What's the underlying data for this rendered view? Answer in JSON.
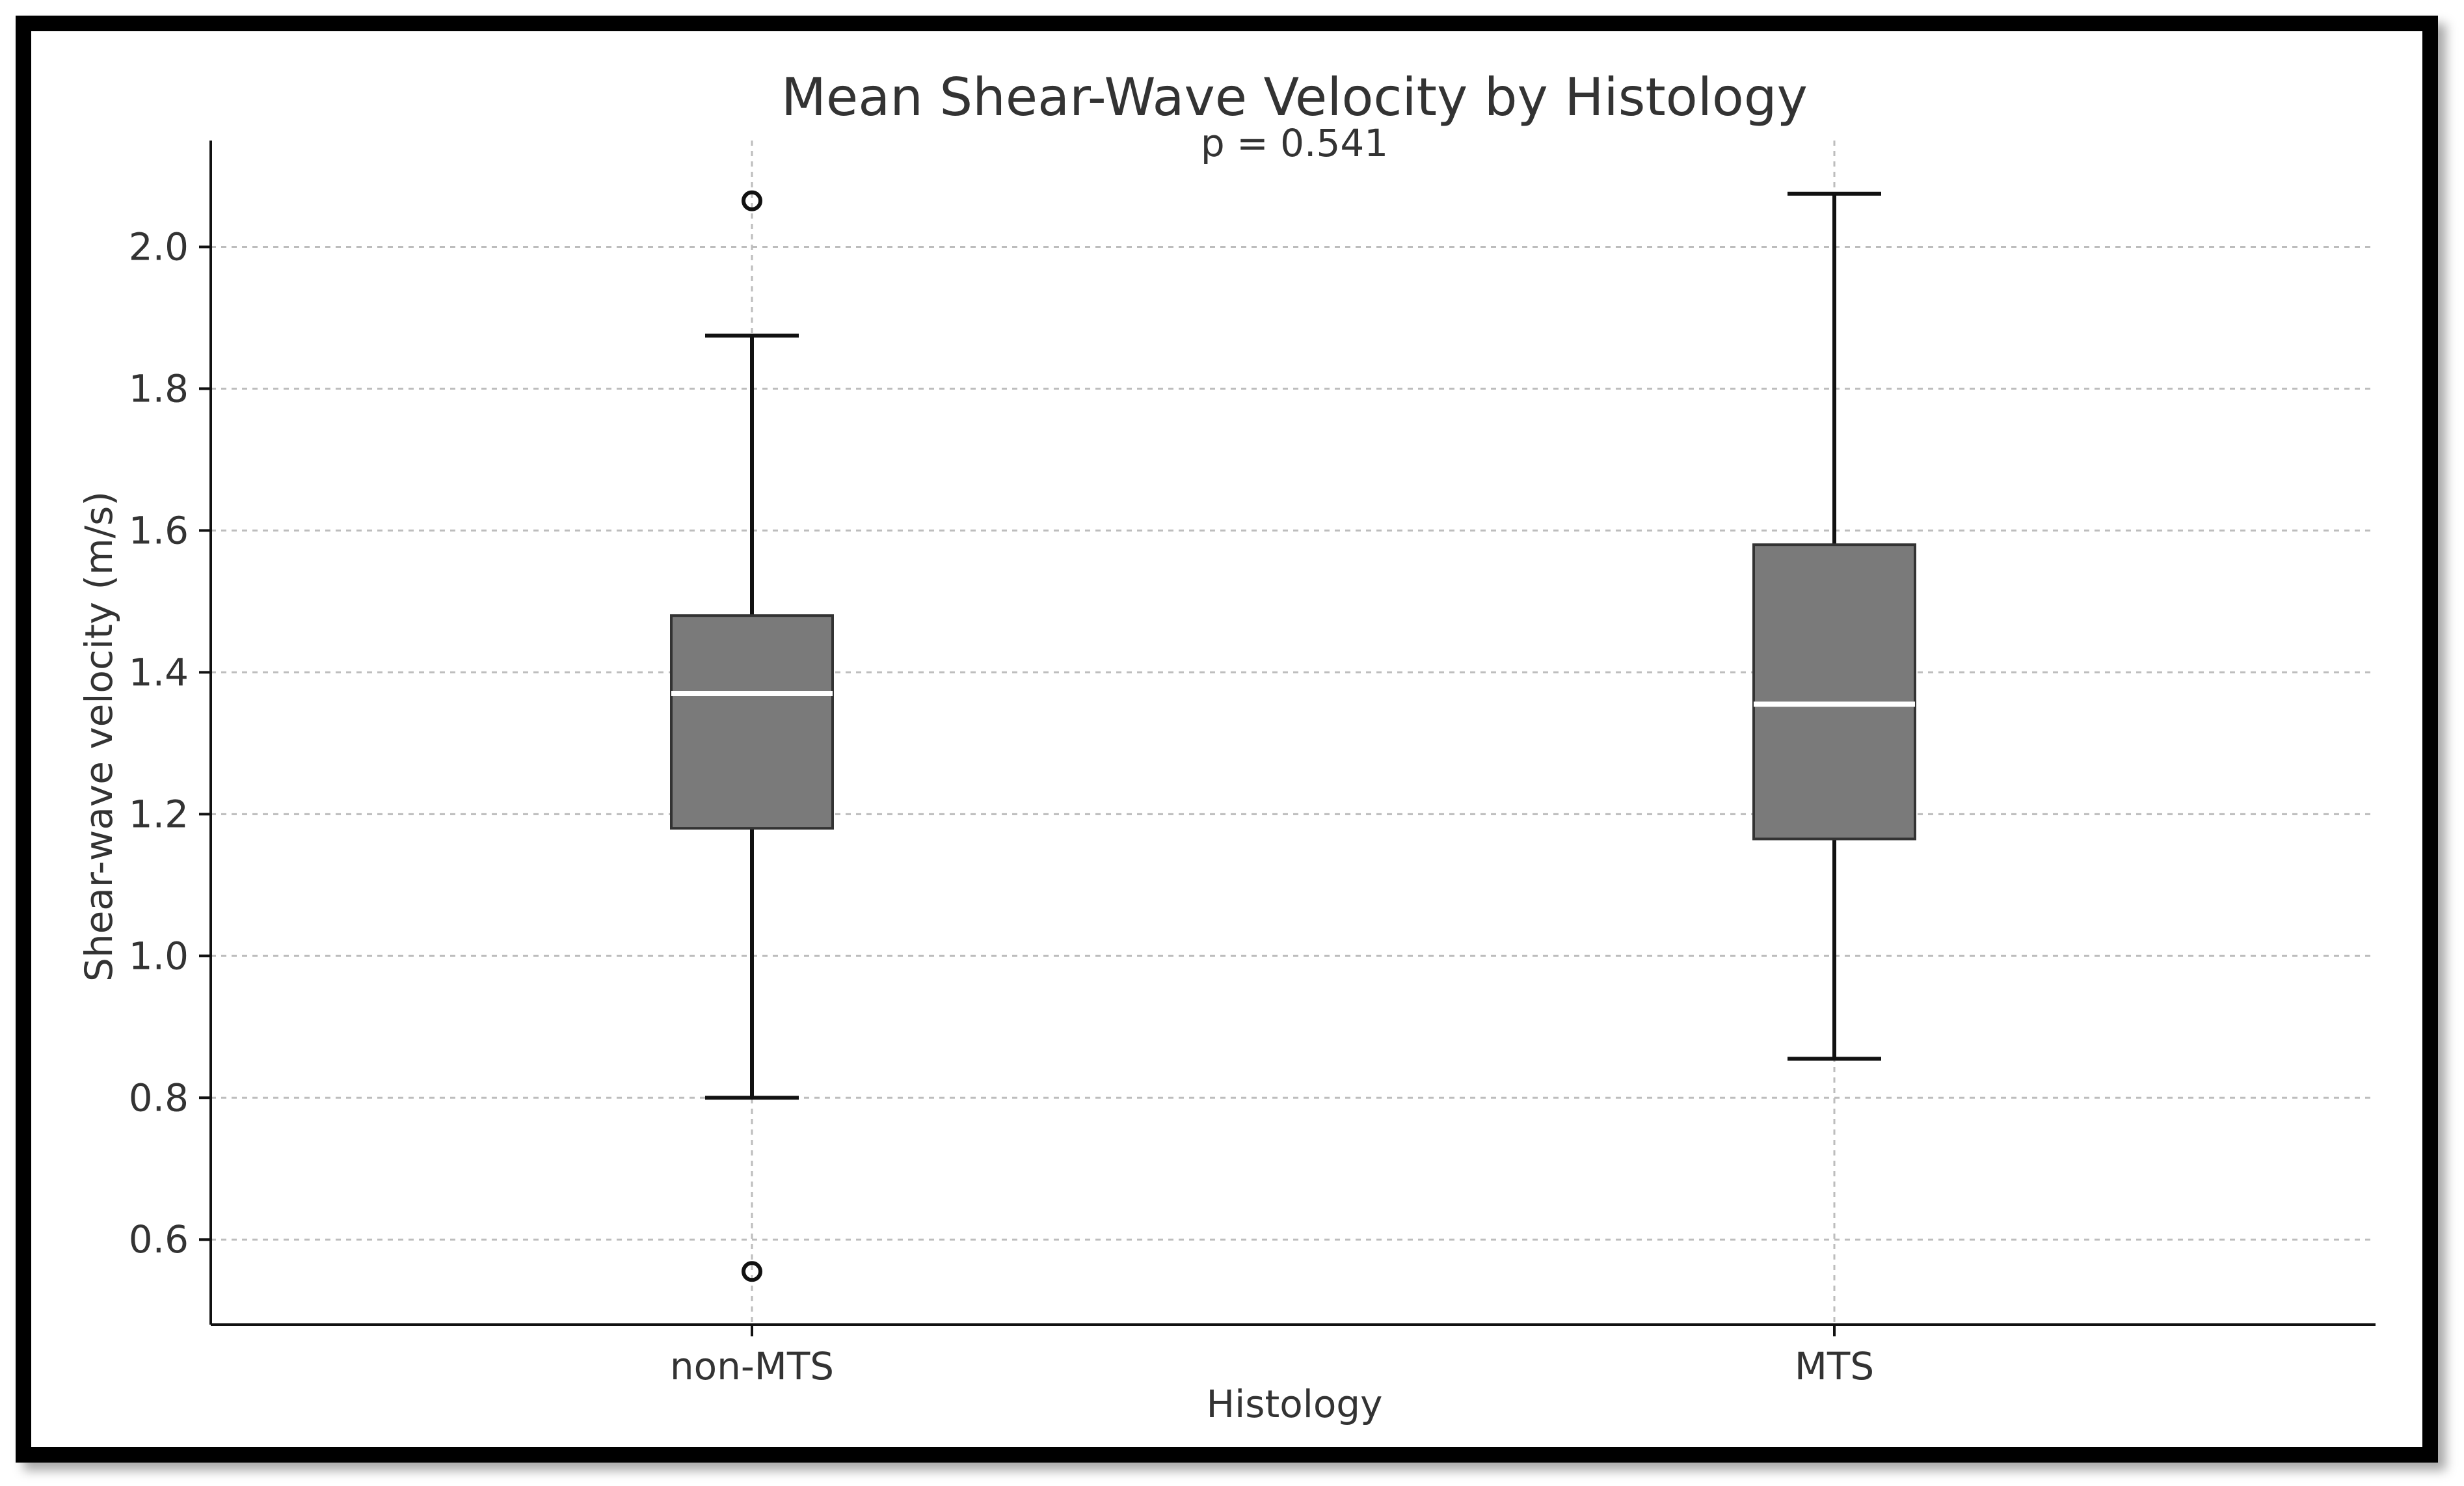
{
  "chart_data": {
    "type": "box",
    "title": "Mean Shear-Wave Velocity by Histology",
    "subtitle": "p = 0.541",
    "xlabel": "Histology",
    "ylabel": "Shear-wave velocity (m/s)",
    "ylim": [
      0.48,
      2.15
    ],
    "yticks": [
      "0.6",
      "0.8",
      "1.0",
      "1.2",
      "1.4",
      "1.6",
      "1.8",
      "2.0"
    ],
    "grid": true,
    "categories": [
      "non-MTS",
      "MTS"
    ],
    "boxes": [
      {
        "name": "non-MTS",
        "whisker_low": 0.8,
        "q1": 1.18,
        "median": 1.37,
        "q3": 1.48,
        "whisker_high": 1.875,
        "outliers": [
          0.555,
          2.065
        ]
      },
      {
        "name": "MTS",
        "whisker_low": 0.855,
        "q1": 1.165,
        "median": 1.355,
        "q3": 1.58,
        "whisker_high": 2.075,
        "outliers": []
      }
    ]
  },
  "colors": {
    "box_fill": "#7a7a7a",
    "box_edge": "#333333",
    "median": "#ffffff",
    "whisker": "#111111",
    "grid": "#bdbdbd",
    "frame": "#000000"
  }
}
